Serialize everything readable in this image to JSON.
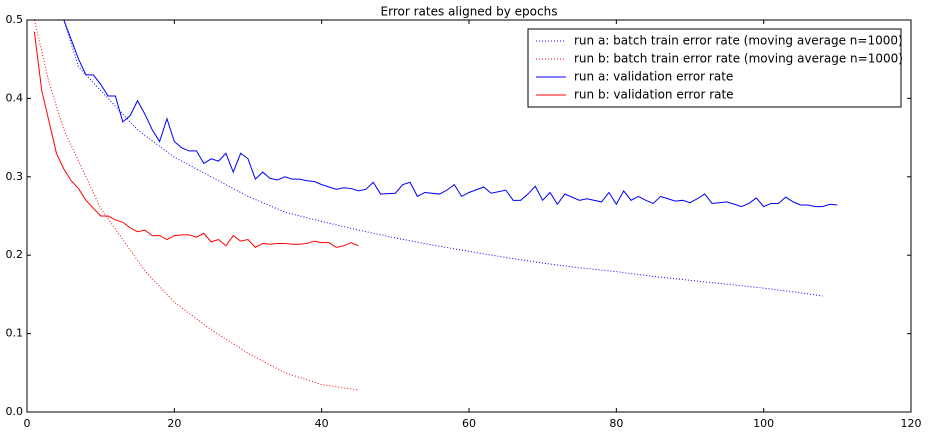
{
  "chart_data": {
    "type": "line",
    "title": "Error rates aligned by epochs",
    "xlim": [
      0,
      120
    ],
    "ylim": [
      0,
      0.5
    ],
    "xticks": [
      0,
      20,
      40,
      60,
      80,
      100,
      120
    ],
    "yticks": [
      {
        "value": 0,
        "label": "0.0"
      },
      0.1,
      0.2,
      0.3,
      0.4,
      0.5
    ],
    "grid": false,
    "legend": "upper right",
    "series": [
      {
        "name": "run a: batch train error rate (moving average n=1000)",
        "color": "#0000ff",
        "linestyle": "dotted",
        "x": [
          5,
          7,
          10,
          15,
          20,
          25,
          30,
          35,
          40,
          45,
          50,
          55,
          60,
          65,
          70,
          75,
          80,
          85,
          90,
          95,
          100,
          105,
          108
        ],
        "values": [
          0.5,
          0.44,
          0.41,
          0.36,
          0.325,
          0.3,
          0.275,
          0.255,
          0.243,
          0.232,
          0.222,
          0.213,
          0.205,
          0.197,
          0.19,
          0.184,
          0.179,
          0.173,
          0.168,
          0.163,
          0.158,
          0.152,
          0.148
        ]
      },
      {
        "name": "run b: batch train error rate (moving average n=1000)",
        "color": "#ff0000",
        "linestyle": "dotted",
        "x": [
          1,
          3,
          5,
          7,
          10,
          13,
          16,
          20,
          25,
          30,
          35,
          40,
          45
        ],
        "values": [
          0.5,
          0.42,
          0.36,
          0.32,
          0.26,
          0.22,
          0.18,
          0.14,
          0.105,
          0.075,
          0.05,
          0.035,
          0.028
        ]
      },
      {
        "name": "run a: validation error rate",
        "color": "#0000ff",
        "linestyle": "solid",
        "x": [
          5,
          6,
          7,
          8,
          9,
          10,
          11,
          12,
          13,
          14,
          15,
          16,
          17,
          18,
          19,
          20,
          21,
          22,
          23,
          24,
          25,
          26,
          27,
          28,
          29,
          30,
          31,
          32,
          33,
          34,
          35,
          36,
          37,
          38,
          39,
          40,
          41,
          42,
          43,
          44,
          45,
          46,
          47,
          48,
          50,
          51,
          52,
          53,
          54,
          56,
          57,
          58,
          59,
          60,
          62,
          63,
          65,
          66,
          67,
          68,
          69,
          70,
          71,
          72,
          73,
          75,
          76,
          78,
          79,
          80,
          81,
          82,
          83,
          84,
          85,
          86,
          87,
          88,
          89,
          90,
          91,
          92,
          93,
          95,
          96,
          97,
          98,
          99,
          100,
          101,
          102,
          103,
          104,
          105,
          106,
          107,
          108,
          109,
          110
        ],
        "values": [
          0.5,
          0.475,
          0.45,
          0.43,
          0.43,
          0.418,
          0.403,
          0.403,
          0.37,
          0.378,
          0.397,
          0.38,
          0.36,
          0.345,
          0.374,
          0.345,
          0.337,
          0.333,
          0.333,
          0.317,
          0.323,
          0.32,
          0.33,
          0.306,
          0.33,
          0.323,
          0.297,
          0.306,
          0.298,
          0.296,
          0.3,
          0.297,
          0.297,
          0.295,
          0.294,
          0.29,
          0.287,
          0.284,
          0.286,
          0.285,
          0.282,
          0.284,
          0.293,
          0.278,
          0.279,
          0.29,
          0.293,
          0.275,
          0.28,
          0.278,
          0.283,
          0.29,
          0.275,
          0.28,
          0.287,
          0.279,
          0.283,
          0.27,
          0.27,
          0.278,
          0.288,
          0.27,
          0.28,
          0.265,
          0.278,
          0.27,
          0.272,
          0.268,
          0.28,
          0.265,
          0.282,
          0.27,
          0.275,
          0.27,
          0.266,
          0.275,
          0.272,
          0.269,
          0.27,
          0.267,
          0.272,
          0.278,
          0.266,
          0.268,
          0.265,
          0.262,
          0.266,
          0.273,
          0.262,
          0.266,
          0.266,
          0.274,
          0.268,
          0.264,
          0.264,
          0.262,
          0.262,
          0.265,
          0.264
        ]
      },
      {
        "name": "run b: validation error rate",
        "color": "#ff0000",
        "linestyle": "solid",
        "x": [
          1,
          2,
          3,
          4,
          5,
          6,
          7,
          8,
          9,
          10,
          11,
          12,
          13,
          14,
          15,
          16,
          17,
          18,
          19,
          20,
          21,
          22,
          23,
          24,
          25,
          26,
          27,
          28,
          29,
          30,
          31,
          32,
          33,
          34,
          35,
          36,
          37,
          38,
          39,
          40,
          41,
          42,
          43,
          44,
          45
        ],
        "values": [
          0.485,
          0.41,
          0.37,
          0.33,
          0.31,
          0.295,
          0.285,
          0.27,
          0.26,
          0.25,
          0.25,
          0.245,
          0.242,
          0.235,
          0.23,
          0.232,
          0.225,
          0.225,
          0.22,
          0.225,
          0.226,
          0.226,
          0.223,
          0.228,
          0.217,
          0.22,
          0.212,
          0.225,
          0.218,
          0.22,
          0.21,
          0.215,
          0.214,
          0.215,
          0.215,
          0.214,
          0.214,
          0.215,
          0.218,
          0.216,
          0.216,
          0.21,
          0.212,
          0.216,
          0.212
        ]
      }
    ]
  }
}
